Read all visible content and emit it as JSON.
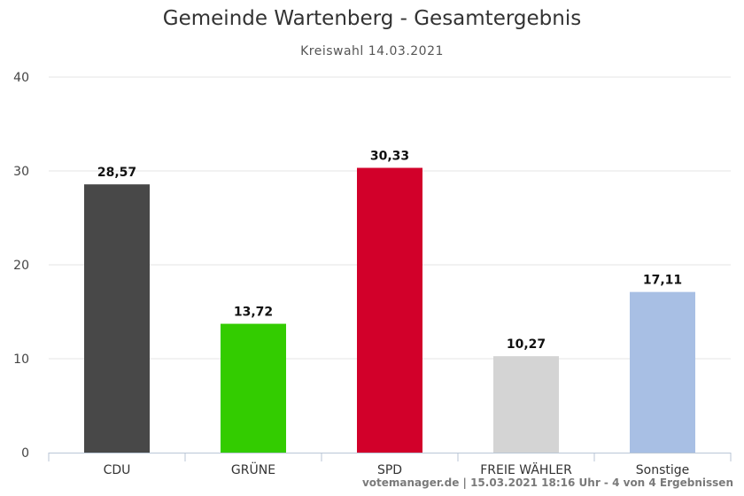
{
  "chart_data": {
    "type": "bar",
    "title": "Gemeinde Wartenberg - Gesamtergebnis",
    "subtitle": "Kreiswahl 14.03.2021",
    "categories": [
      "CDU",
      "GRÜNE",
      "SPD",
      "FREIE WÄHLER",
      "Sonstige"
    ],
    "values": [
      28.57,
      13.72,
      30.33,
      10.27,
      17.11
    ],
    "value_labels": [
      "28,57",
      "13,72",
      "30,33",
      "10,27",
      "17,11"
    ],
    "colors": [
      "#484848",
      "#33cc00",
      "#d2002a",
      "#d4d4d4",
      "#a8bfe4"
    ],
    "ylim": [
      0,
      40
    ],
    "yticks": [
      0,
      10,
      20,
      30,
      40
    ],
    "grid": true,
    "xlabel": "",
    "ylabel": ""
  },
  "credits": "votemanager.de | 15.03.2021 18:16 Uhr - 4 von 4 Ergebnissen"
}
